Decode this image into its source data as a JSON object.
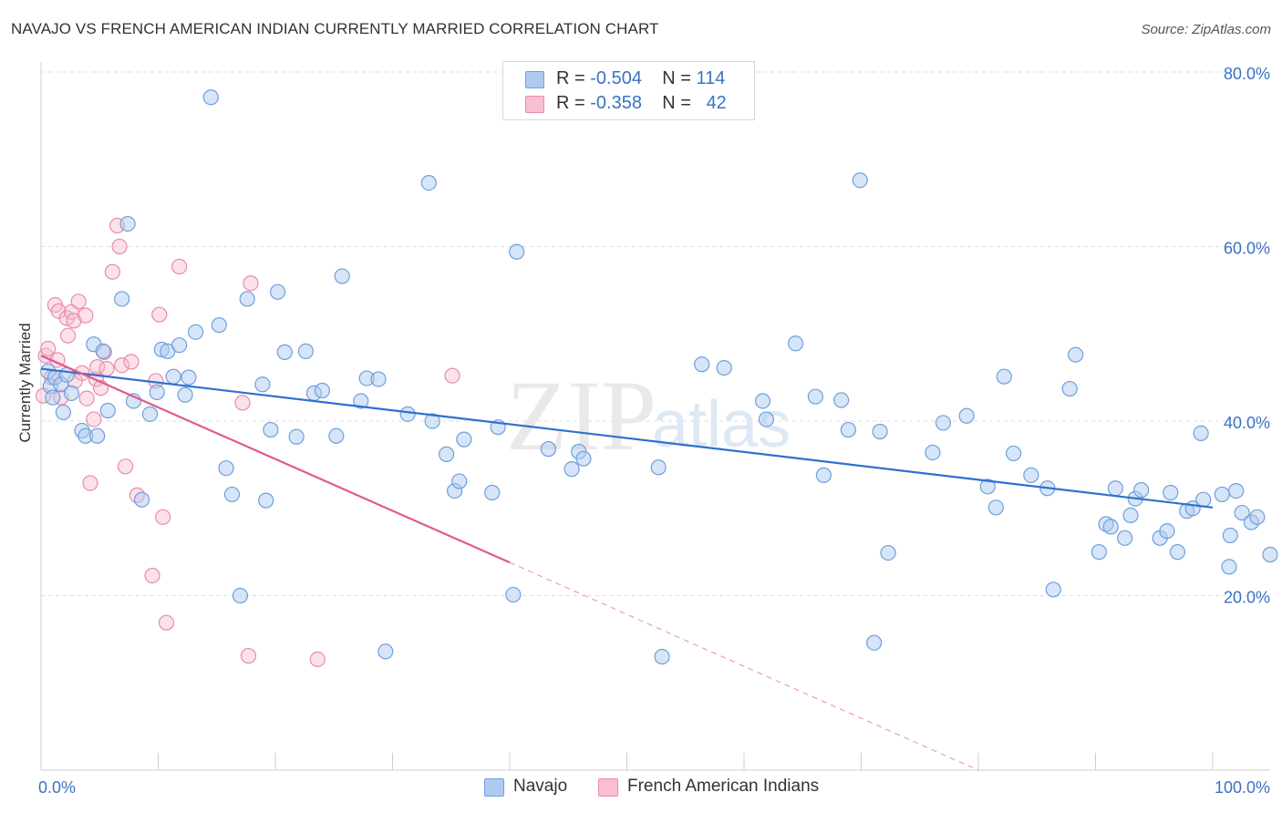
{
  "title": "NAVAJO VS FRENCH AMERICAN INDIAN CURRENTLY MARRIED CORRELATION CHART",
  "source": "Source: ZipAtlas.com",
  "watermark": {
    "zip": "ZIP",
    "atlas": "atlas"
  },
  "legend": {
    "navajo": {
      "r_label": "R =",
      "r_value": "-0.504",
      "n_label": "N =",
      "n_value": "114"
    },
    "french": {
      "r_label": "R =",
      "r_value": "-0.358",
      "n_label": "N =",
      "n_value": "42"
    }
  },
  "colors": {
    "navajo_fill": "#aecbef",
    "navajo_stroke": "#6f9fdc",
    "navajo_line": "#2f6fd0",
    "french_fill": "#f7bfd0",
    "french_stroke": "#e98ba8",
    "french_line": "#e05a8a",
    "tick_label": "#3a72c4",
    "grid": "#dddddd"
  },
  "chart_data": {
    "type": "scatter",
    "title": "NAVAJO VS FRENCH AMERICAN INDIAN CURRENTLY MARRIED CORRELATION CHART",
    "xlabel": "",
    "ylabel": "Currently Married",
    "xlim": [
      0,
      100
    ],
    "ylim": [
      0,
      85
    ],
    "x_tick_labels": [
      "0.0%",
      "100.0%"
    ],
    "y_ticks": [
      20,
      40,
      60,
      80
    ],
    "y_tick_labels": [
      "20.0%",
      "40.0%",
      "60.0%",
      "80.0%"
    ],
    "grid": "horizontal dashed",
    "legend_position": "top-center and bottom",
    "series": [
      {
        "name": "Navajo",
        "r": -0.504,
        "n": 114,
        "trend": {
          "x": [
            0,
            100
          ],
          "y": [
            46.0,
            30.1
          ]
        },
        "points": [
          [
            0.6,
            45.7
          ],
          [
            0.8,
            44.0
          ],
          [
            1.0,
            42.7
          ],
          [
            1.2,
            45.0
          ],
          [
            1.7,
            44.2
          ],
          [
            1.9,
            41.0
          ],
          [
            2.2,
            45.3
          ],
          [
            2.6,
            43.2
          ],
          [
            3.5,
            38.9
          ],
          [
            3.8,
            38.3
          ],
          [
            4.5,
            48.8
          ],
          [
            4.8,
            38.3
          ],
          [
            5.3,
            48.0
          ],
          [
            5.7,
            41.2
          ],
          [
            6.9,
            54.0
          ],
          [
            7.4,
            62.6
          ],
          [
            7.9,
            42.3
          ],
          [
            8.6,
            31.0
          ],
          [
            9.3,
            40.8
          ],
          [
            9.9,
            43.3
          ],
          [
            10.3,
            48.2
          ],
          [
            10.8,
            48.0
          ],
          [
            11.3,
            45.1
          ],
          [
            11.8,
            48.7
          ],
          [
            12.3,
            43.0
          ],
          [
            12.6,
            45.0
          ],
          [
            13.2,
            50.2
          ],
          [
            14.5,
            77.1
          ],
          [
            15.2,
            51.0
          ],
          [
            15.8,
            34.6
          ],
          [
            16.3,
            31.6
          ],
          [
            17.0,
            20.0
          ],
          [
            17.6,
            54.0
          ],
          [
            18.9,
            44.2
          ],
          [
            19.2,
            30.9
          ],
          [
            19.6,
            39.0
          ],
          [
            20.2,
            54.8
          ],
          [
            20.8,
            47.9
          ],
          [
            21.8,
            38.2
          ],
          [
            22.6,
            48.0
          ],
          [
            23.3,
            43.2
          ],
          [
            24.0,
            43.5
          ],
          [
            25.2,
            38.3
          ],
          [
            25.7,
            56.6
          ],
          [
            27.3,
            42.3
          ],
          [
            27.8,
            44.9
          ],
          [
            28.8,
            44.8
          ],
          [
            29.4,
            13.6
          ],
          [
            31.3,
            40.8
          ],
          [
            33.1,
            67.3
          ],
          [
            33.4,
            40.0
          ],
          [
            34.6,
            36.2
          ],
          [
            35.3,
            32.0
          ],
          [
            35.7,
            33.1
          ],
          [
            36.1,
            37.9
          ],
          [
            38.5,
            31.8
          ],
          [
            39.0,
            39.3
          ],
          [
            40.3,
            20.1
          ],
          [
            40.6,
            59.4
          ],
          [
            43.3,
            36.8
          ],
          [
            45.3,
            34.5
          ],
          [
            45.9,
            36.5
          ],
          [
            46.3,
            35.7
          ],
          [
            52.7,
            34.7
          ],
          [
            53.0,
            13.0
          ],
          [
            56.4,
            46.5
          ],
          [
            58.3,
            46.1
          ],
          [
            61.6,
            42.3
          ],
          [
            61.9,
            40.2
          ],
          [
            64.4,
            48.9
          ],
          [
            66.1,
            42.8
          ],
          [
            66.8,
            33.8
          ],
          [
            68.3,
            42.4
          ],
          [
            68.9,
            39.0
          ],
          [
            69.9,
            67.6
          ],
          [
            71.1,
            14.6
          ],
          [
            71.6,
            38.8
          ],
          [
            72.3,
            24.9
          ],
          [
            76.1,
            36.4
          ],
          [
            77.0,
            39.8
          ],
          [
            79.0,
            40.6
          ],
          [
            80.8,
            32.5
          ],
          [
            81.5,
            30.1
          ],
          [
            82.2,
            45.1
          ],
          [
            83.0,
            36.3
          ],
          [
            84.5,
            33.8
          ],
          [
            85.9,
            32.3
          ],
          [
            86.4,
            20.7
          ],
          [
            87.8,
            43.7
          ],
          [
            88.3,
            47.6
          ],
          [
            90.3,
            25.0
          ],
          [
            90.9,
            28.2
          ],
          [
            91.3,
            27.9
          ],
          [
            91.7,
            32.3
          ],
          [
            92.5,
            26.6
          ],
          [
            93.0,
            29.2
          ],
          [
            93.4,
            31.1
          ],
          [
            93.9,
            32.1
          ],
          [
            95.5,
            26.6
          ],
          [
            96.1,
            27.4
          ],
          [
            96.4,
            31.8
          ],
          [
            97.0,
            25.0
          ],
          [
            97.8,
            29.7
          ],
          [
            98.3,
            30.0
          ],
          [
            99.0,
            38.6
          ],
          [
            99.2,
            31.0
          ],
          [
            100.8,
            31.6
          ],
          [
            101.4,
            23.3
          ],
          [
            101.5,
            26.9
          ],
          [
            102.0,
            32.0
          ],
          [
            102.5,
            29.5
          ],
          [
            103.3,
            28.4
          ],
          [
            103.8,
            29.0
          ],
          [
            104.9,
            24.7
          ]
        ]
      },
      {
        "name": "French American Indians",
        "r": -0.358,
        "n": 42,
        "trend": {
          "x": [
            0,
            40
          ],
          "y": [
            47.5,
            23.8
          ]
        },
        "trend_dashed": {
          "x": [
            40,
            80
          ],
          "y": [
            23.8,
            0
          ]
        },
        "points": [
          [
            0.2,
            42.9
          ],
          [
            0.4,
            47.5
          ],
          [
            0.6,
            48.3
          ],
          [
            0.9,
            45.0
          ],
          [
            1.2,
            53.3
          ],
          [
            1.4,
            47.0
          ],
          [
            1.5,
            52.6
          ],
          [
            1.7,
            42.7
          ],
          [
            2.2,
            51.8
          ],
          [
            2.3,
            49.8
          ],
          [
            2.6,
            52.5
          ],
          [
            2.8,
            51.5
          ],
          [
            2.9,
            44.6
          ],
          [
            3.2,
            53.7
          ],
          [
            3.5,
            45.5
          ],
          [
            3.8,
            52.1
          ],
          [
            3.9,
            42.6
          ],
          [
            4.2,
            32.9
          ],
          [
            4.5,
            40.2
          ],
          [
            4.7,
            44.8
          ],
          [
            4.8,
            46.2
          ],
          [
            5.1,
            43.8
          ],
          [
            5.4,
            47.9
          ],
          [
            5.6,
            46.0
          ],
          [
            6.1,
            57.1
          ],
          [
            6.5,
            62.4
          ],
          [
            6.7,
            60.0
          ],
          [
            6.9,
            46.4
          ],
          [
            7.2,
            34.8
          ],
          [
            7.7,
            46.8
          ],
          [
            8.2,
            31.5
          ],
          [
            9.5,
            22.3
          ],
          [
            9.8,
            44.6
          ],
          [
            10.1,
            52.2
          ],
          [
            10.4,
            29.0
          ],
          [
            10.7,
            16.9
          ],
          [
            11.8,
            57.7
          ],
          [
            17.2,
            42.1
          ],
          [
            17.7,
            13.1
          ],
          [
            17.9,
            55.8
          ],
          [
            23.6,
            12.7
          ],
          [
            35.1,
            45.2
          ]
        ]
      }
    ]
  },
  "bottom_legend": {
    "navajo": "Navajo",
    "french": "French American Indians"
  }
}
